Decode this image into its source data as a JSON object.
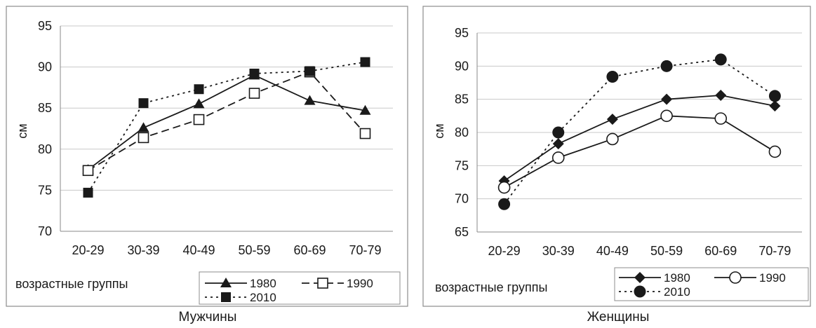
{
  "chart_data": [
    {
      "type": "line",
      "caption": "Мужчины",
      "xlabel": "возрастные группы",
      "ylabel": "см",
      "categories": [
        "20-29",
        "30-39",
        "40-49",
        "50-59",
        "60-69",
        "70-79"
      ],
      "ylim": [
        70,
        95
      ],
      "yticks": [
        70,
        75,
        80,
        85,
        90,
        95
      ],
      "grid": true,
      "legend_position": "bottom-right",
      "series": [
        {
          "name": "1980",
          "values": [
            77.5,
            82.6,
            85.5,
            89.0,
            85.9,
            84.7
          ],
          "line": "solid",
          "marker": "triangle-filled"
        },
        {
          "name": "1990",
          "values": [
            77.4,
            81.4,
            83.6,
            86.8,
            89.4,
            81.9
          ],
          "line": "dashed",
          "marker": "square-open"
        },
        {
          "name": "2010",
          "values": [
            74.7,
            85.6,
            87.3,
            89.2,
            89.5,
            90.6
          ],
          "line": "dotted",
          "marker": "square-filled"
        }
      ]
    },
    {
      "type": "line",
      "caption": "Женщины",
      "xlabel": "возрастные группы",
      "ylabel": "см",
      "categories": [
        "20-29",
        "30-39",
        "40-49",
        "50-59",
        "60-69",
        "70-79"
      ],
      "ylim": [
        65,
        95
      ],
      "yticks": [
        65,
        70,
        75,
        80,
        85,
        90,
        95
      ],
      "grid": true,
      "legend_position": "bottom-right",
      "series": [
        {
          "name": "1980",
          "values": [
            72.7,
            78.3,
            82.0,
            85.0,
            85.6,
            84.0
          ],
          "line": "solid",
          "marker": "diamond-filled"
        },
        {
          "name": "1990",
          "values": [
            71.7,
            76.2,
            79.0,
            82.5,
            82.1,
            77.1
          ],
          "line": "solid",
          "marker": "circle-open"
        },
        {
          "name": "2010",
          "values": [
            69.2,
            80.0,
            88.4,
            90.0,
            91.0,
            85.5
          ],
          "line": "dotted",
          "marker": "circle-filled"
        }
      ]
    }
  ]
}
